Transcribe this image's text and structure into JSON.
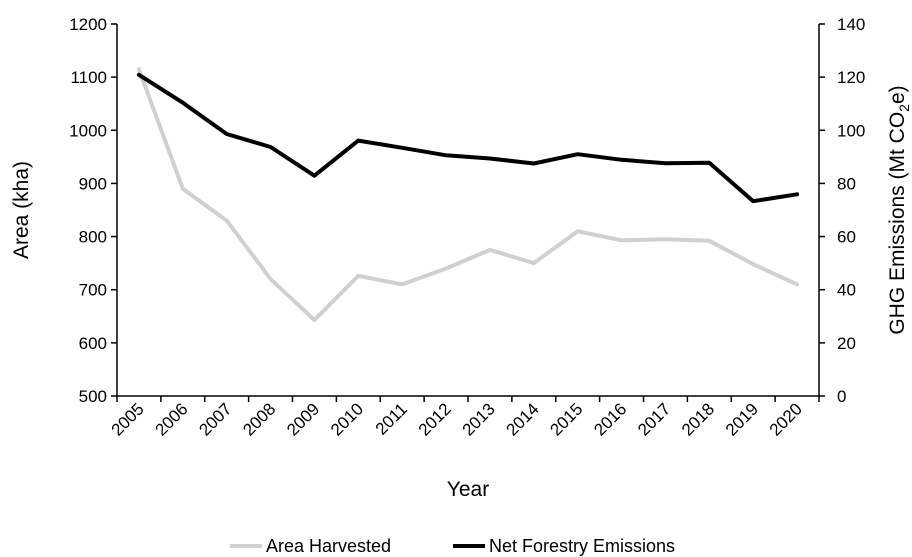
{
  "chart_data": {
    "type": "line",
    "x": [
      "2005",
      "2006",
      "2007",
      "2008",
      "2009",
      "2010",
      "2011",
      "2012",
      "2013",
      "2014",
      "2015",
      "2016",
      "2017",
      "2018",
      "2019",
      "2020"
    ],
    "xlabel": "Year",
    "ylabel_left": "Area (kha)",
    "ylabel_right_prefix": "GHG Emissions (Mt CO",
    "ylabel_right_sub": "2",
    "ylabel_right_suffix": "e)",
    "ylim_left": [
      500,
      1200
    ],
    "yticks_left": [
      "500",
      "600",
      "700",
      "800",
      "900",
      "1000",
      "1100",
      "1200"
    ],
    "ylim_right": [
      0,
      140
    ],
    "yticks_right": [
      "0",
      "20",
      "40",
      "60",
      "80",
      "100",
      "120",
      "140"
    ],
    "grid": false,
    "legend_position": "bottom-center",
    "series": [
      {
        "name": "Area Harvested",
        "axis": "left",
        "color": "#d0d0d0",
        "values": [
          1115,
          890,
          830,
          720,
          643,
          726,
          710,
          740,
          775,
          750,
          810,
          793,
          795,
          792,
          748,
          710
        ]
      },
      {
        "name": "Net Forestry Emissions",
        "axis": "right",
        "color": "#000000",
        "values": [
          120.9,
          110.4,
          98.6,
          93.7,
          82.9,
          96.1,
          93.4,
          90.6,
          89.4,
          87.5,
          91.0,
          88.9,
          87.6,
          87.8,
          73.3,
          75.9
        ]
      }
    ]
  }
}
